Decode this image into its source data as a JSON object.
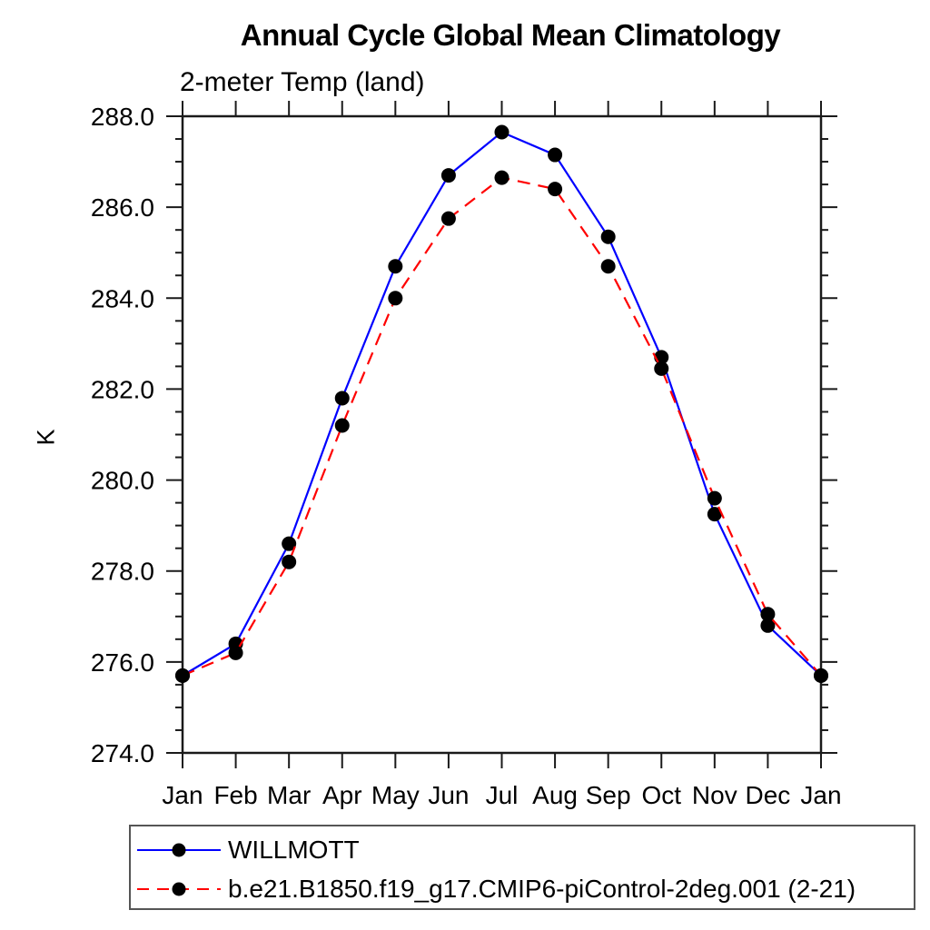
{
  "title": "Annual Cycle Global Mean Climatology",
  "subtitle": "2-meter Temp (land)",
  "chart_data": {
    "type": "line",
    "categories": [
      "Jan",
      "Feb",
      "Mar",
      "Apr",
      "May",
      "Jun",
      "Jul",
      "Aug",
      "Sep",
      "Oct",
      "Nov",
      "Dec",
      "Jan"
    ],
    "xlabel": "",
    "ylabel": "K",
    "ylim": [
      274.0,
      288.0
    ],
    "ytick_major_step": 2.0,
    "ytick_minor_step": 0.5,
    "ytick_labels": [
      "274.0",
      "276.0",
      "278.0",
      "280.0",
      "282.0",
      "284.0",
      "286.0",
      "288.0"
    ],
    "grid": false,
    "legend_position": "bottom-left",
    "axis_color": "#1a1a1a",
    "marker_color": "#000000",
    "series": [
      {
        "name": "WILLMOTT",
        "color": "#0000ff",
        "line_style": "solid",
        "marker": "filled-circle",
        "values": [
          275.7,
          276.4,
          278.6,
          281.8,
          284.7,
          286.7,
          287.65,
          287.15,
          285.35,
          282.7,
          279.25,
          276.8,
          275.7
        ]
      },
      {
        "name": "b.e21.B1850.f19_g17.CMIP6-piControl-2deg.001 (2-21)",
        "color": "#ff0000",
        "line_style": "dashed",
        "marker": "filled-circle",
        "values": [
          275.7,
          276.2,
          278.2,
          281.2,
          284.0,
          285.75,
          286.65,
          286.4,
          284.7,
          282.45,
          279.6,
          277.05,
          275.7
        ]
      }
    ]
  }
}
